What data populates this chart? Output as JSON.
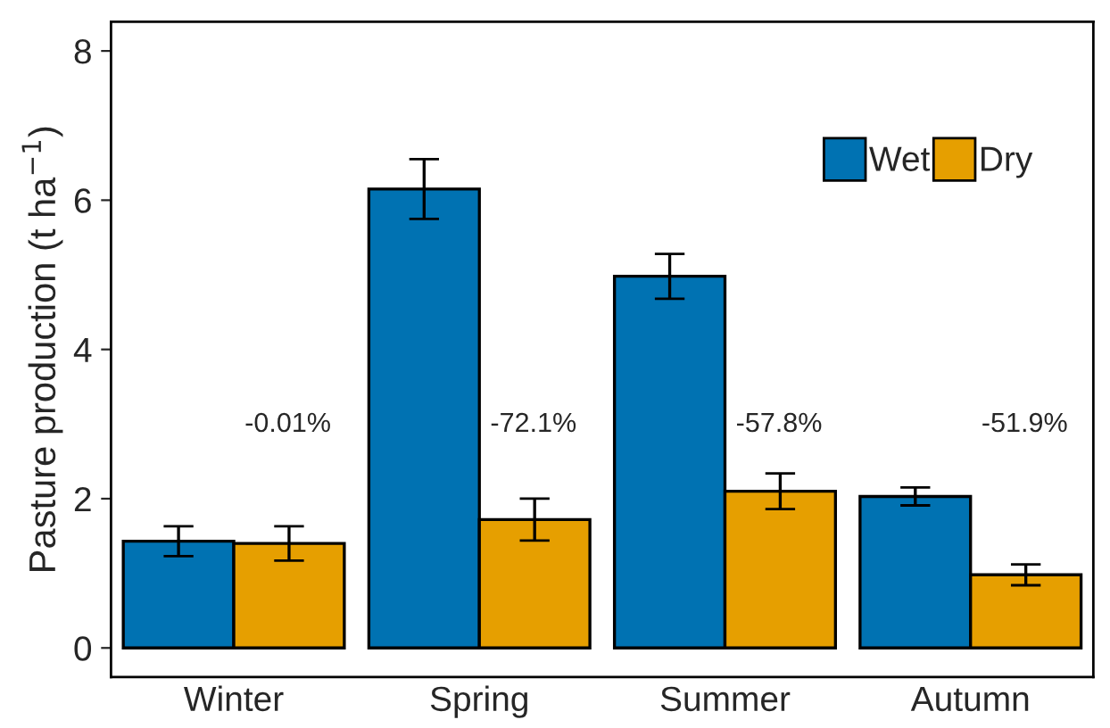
{
  "chart_data": {
    "type": "bar",
    "ylabel": "Pasture production (t ha$^{−1}$)",
    "categories": [
      "Winter",
      "Spring",
      "Summer",
      "Autumn"
    ],
    "series": [
      {
        "name": "Wet",
        "color": "#0072b2",
        "values": [
          1.43,
          6.15,
          4.98,
          2.03
        ],
        "errors": [
          0.2,
          0.4,
          0.3,
          0.12
        ]
      },
      {
        "name": "Dry",
        "color": "#e69f00",
        "values": [
          1.4,
          1.72,
          2.1,
          0.98
        ],
        "errors": [
          0.23,
          0.28,
          0.24,
          0.14
        ]
      }
    ],
    "ylim": [
      -0.39,
      8.39
    ],
    "yticks": [
      0,
      2,
      4,
      6,
      8
    ],
    "annotations": [
      "-0.01%",
      "-72.1%",
      "-57.8%",
      "-51.9%"
    ],
    "grid": false,
    "legend": "top right"
  }
}
